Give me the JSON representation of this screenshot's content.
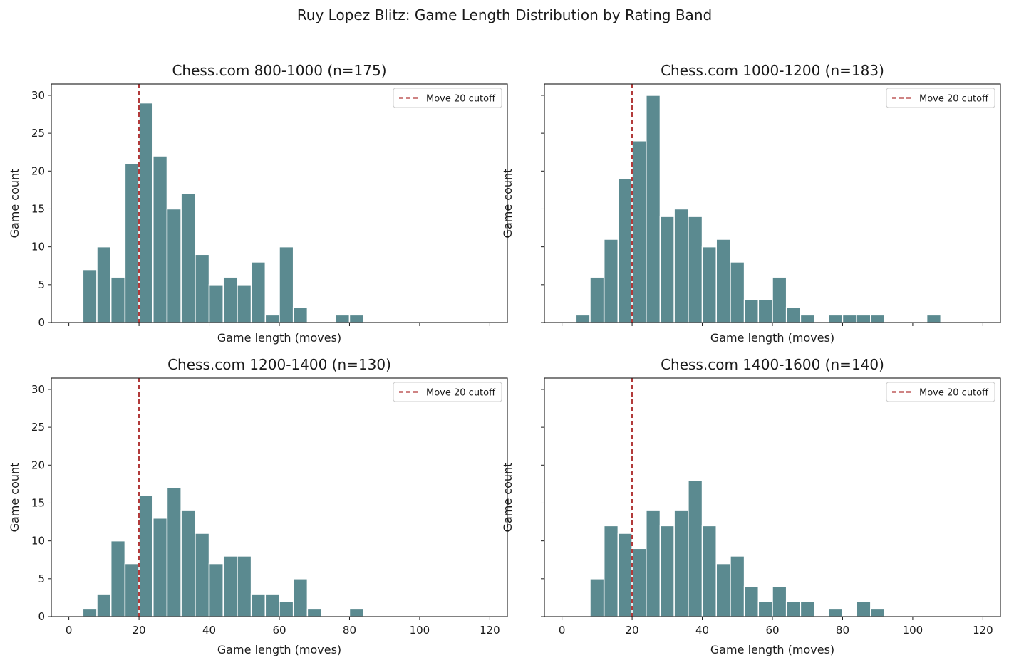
{
  "figure": {
    "suptitle": "Ruy Lopez Blitz: Game Length Distribution by Rating Band"
  },
  "colors": {
    "bar": "#5b8a90",
    "bar_edge": "#ffffff",
    "cutoff": "#b23a3a",
    "axis": "#1a1a1a"
  },
  "chart_data": [
    {
      "type": "bar",
      "title": "Chess.com 800-1000  (n=175)",
      "xlabel": "Game length (moves)",
      "ylabel": "Game count",
      "xlim": [
        -5,
        125
      ],
      "ylim": [
        0,
        31.5
      ],
      "xticks": [
        0,
        20,
        40,
        60,
        80,
        100,
        120
      ],
      "yticks": [
        0,
        5,
        10,
        15,
        20,
        25,
        30
      ],
      "show_xticklabels": false,
      "show_yticklabels": true,
      "bin_width": 4,
      "bins": [
        {
          "x0": 4,
          "count": 7
        },
        {
          "x0": 8,
          "count": 10
        },
        {
          "x0": 12,
          "count": 6
        },
        {
          "x0": 16,
          "count": 21
        },
        {
          "x0": 20,
          "count": 29
        },
        {
          "x0": 24,
          "count": 22
        },
        {
          "x0": 28,
          "count": 15
        },
        {
          "x0": 32,
          "count": 17
        },
        {
          "x0": 36,
          "count": 9
        },
        {
          "x0": 40,
          "count": 5
        },
        {
          "x0": 44,
          "count": 6
        },
        {
          "x0": 48,
          "count": 5
        },
        {
          "x0": 52,
          "count": 8
        },
        {
          "x0": 56,
          "count": 1
        },
        {
          "x0": 60,
          "count": 10
        },
        {
          "x0": 64,
          "count": 2
        },
        {
          "x0": 76,
          "count": 1
        },
        {
          "x0": 80,
          "count": 1
        }
      ],
      "cutoff": 20,
      "legend": {
        "label": "Move 20 cutoff",
        "loc": "upper right"
      },
      "grid": false
    },
    {
      "type": "bar",
      "title": "Chess.com 1000-1200  (n=183)",
      "xlabel": "Game length (moves)",
      "ylabel": "Game count",
      "xlim": [
        -5,
        125
      ],
      "ylim": [
        0,
        31.5
      ],
      "xticks": [
        0,
        20,
        40,
        60,
        80,
        100,
        120
      ],
      "yticks": [
        0,
        5,
        10,
        15,
        20,
        25,
        30
      ],
      "show_xticklabels": false,
      "show_yticklabels": false,
      "bin_width": 4,
      "bins": [
        {
          "x0": 4,
          "count": 1
        },
        {
          "x0": 8,
          "count": 6
        },
        {
          "x0": 12,
          "count": 11
        },
        {
          "x0": 16,
          "count": 19
        },
        {
          "x0": 20,
          "count": 24
        },
        {
          "x0": 24,
          "count": 30
        },
        {
          "x0": 28,
          "count": 14
        },
        {
          "x0": 32,
          "count": 15
        },
        {
          "x0": 36,
          "count": 14
        },
        {
          "x0": 40,
          "count": 10
        },
        {
          "x0": 44,
          "count": 11
        },
        {
          "x0": 48,
          "count": 8
        },
        {
          "x0": 52,
          "count": 3
        },
        {
          "x0": 56,
          "count": 3
        },
        {
          "x0": 60,
          "count": 6
        },
        {
          "x0": 64,
          "count": 2
        },
        {
          "x0": 68,
          "count": 1
        },
        {
          "x0": 76,
          "count": 1
        },
        {
          "x0": 80,
          "count": 1
        },
        {
          "x0": 84,
          "count": 1
        },
        {
          "x0": 88,
          "count": 1
        },
        {
          "x0": 104,
          "count": 1
        }
      ],
      "cutoff": 20,
      "legend": {
        "label": "Move 20 cutoff",
        "loc": "upper right"
      },
      "grid": false
    },
    {
      "type": "bar",
      "title": "Chess.com 1200-1400  (n=130)",
      "xlabel": "Game length (moves)",
      "ylabel": "Game count",
      "xlim": [
        -5,
        125
      ],
      "ylim": [
        0,
        31.5
      ],
      "xticks": [
        0,
        20,
        40,
        60,
        80,
        100,
        120
      ],
      "yticks": [
        0,
        5,
        10,
        15,
        20,
        25,
        30
      ],
      "show_xticklabels": true,
      "show_yticklabels": true,
      "bin_width": 4,
      "bins": [
        {
          "x0": 4,
          "count": 1
        },
        {
          "x0": 8,
          "count": 3
        },
        {
          "x0": 12,
          "count": 10
        },
        {
          "x0": 16,
          "count": 7
        },
        {
          "x0": 20,
          "count": 16
        },
        {
          "x0": 24,
          "count": 13
        },
        {
          "x0": 28,
          "count": 17
        },
        {
          "x0": 32,
          "count": 14
        },
        {
          "x0": 36,
          "count": 11
        },
        {
          "x0": 40,
          "count": 7
        },
        {
          "x0": 44,
          "count": 8
        },
        {
          "x0": 48,
          "count": 8
        },
        {
          "x0": 52,
          "count": 3
        },
        {
          "x0": 56,
          "count": 3
        },
        {
          "x0": 60,
          "count": 2
        },
        {
          "x0": 64,
          "count": 5
        },
        {
          "x0": 68,
          "count": 1
        },
        {
          "x0": 80,
          "count": 1
        }
      ],
      "cutoff": 20,
      "legend": {
        "label": "Move 20 cutoff",
        "loc": "upper right"
      },
      "grid": false
    },
    {
      "type": "bar",
      "title": "Chess.com 1400-1600  (n=140)",
      "xlabel": "Game length (moves)",
      "ylabel": "Game count",
      "xlim": [
        -5,
        125
      ],
      "ylim": [
        0,
        31.5
      ],
      "xticks": [
        0,
        20,
        40,
        60,
        80,
        100,
        120
      ],
      "yticks": [
        0,
        5,
        10,
        15,
        20,
        25,
        30
      ],
      "show_xticklabels": true,
      "show_yticklabels": false,
      "bin_width": 4,
      "bins": [
        {
          "x0": 8,
          "count": 5
        },
        {
          "x0": 12,
          "count": 12
        },
        {
          "x0": 16,
          "count": 11
        },
        {
          "x0": 20,
          "count": 9
        },
        {
          "x0": 24,
          "count": 14
        },
        {
          "x0": 28,
          "count": 12
        },
        {
          "x0": 32,
          "count": 14
        },
        {
          "x0": 36,
          "count": 18
        },
        {
          "x0": 40,
          "count": 12
        },
        {
          "x0": 44,
          "count": 7
        },
        {
          "x0": 48,
          "count": 8
        },
        {
          "x0": 52,
          "count": 4
        },
        {
          "x0": 56,
          "count": 2
        },
        {
          "x0": 60,
          "count": 4
        },
        {
          "x0": 64,
          "count": 2
        },
        {
          "x0": 68,
          "count": 2
        },
        {
          "x0": 76,
          "count": 1
        },
        {
          "x0": 84,
          "count": 2
        },
        {
          "x0": 88,
          "count": 1
        }
      ],
      "cutoff": 20,
      "legend": {
        "label": "Move 20 cutoff",
        "loc": "upper right"
      },
      "grid": false
    }
  ]
}
